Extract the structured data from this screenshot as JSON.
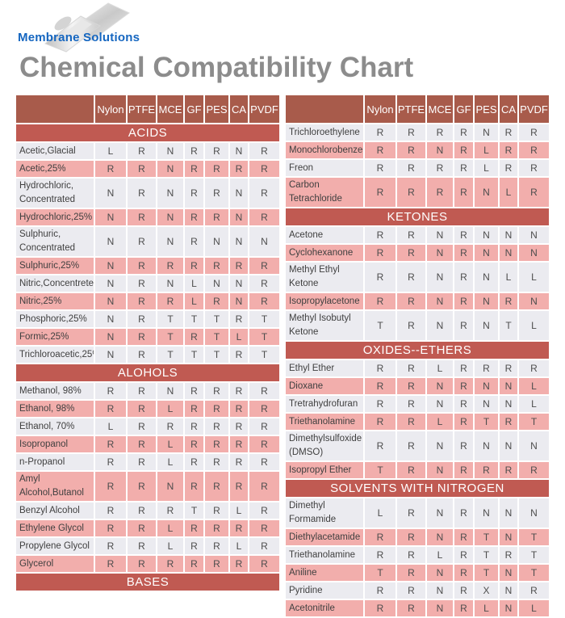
{
  "logo": {
    "brand": "Membrane Solutions"
  },
  "title": "Chemical Compatibility Chart",
  "columns": [
    "Nylon",
    "PTFE",
    "MCE",
    "GF",
    "PES",
    "CA",
    "PVDF"
  ],
  "colors": {
    "header_bg": "#a85b4b",
    "section_bg": "#c05a52",
    "pink_row": "#f2aeac",
    "light_row": "#ebebf0",
    "brand_blue": "#1566c0",
    "title_gray": "#8c8c8c"
  },
  "left_table": {
    "sections": [
      {
        "label": "ACIDS",
        "rows": [
          {
            "name": "Acetic,Glacial",
            "values": [
              "L",
              "R",
              "N",
              "R",
              "R",
              "N",
              "R"
            ]
          },
          {
            "name": "Acetic,25%",
            "values": [
              "R",
              "R",
              "N",
              "R",
              "R",
              "R",
              "R"
            ]
          },
          {
            "name": "Hydrochloric,\nConcentrated",
            "values": [
              "N",
              "R",
              "N",
              "R",
              "R",
              "N",
              "R"
            ]
          },
          {
            "name": "Hydrochloric,25%",
            "values": [
              "N",
              "R",
              "N",
              "R",
              "R",
              "N",
              "R"
            ]
          },
          {
            "name": "Sulphuric,\nConcentrated",
            "values": [
              "N",
              "R",
              "N",
              "R",
              "N",
              "N",
              "N"
            ]
          },
          {
            "name": "Sulphuric,25%",
            "values": [
              "N",
              "R",
              "R",
              "R",
              "R",
              "R",
              "R"
            ]
          },
          {
            "name": "Nitric,Concentreted",
            "values": [
              "N",
              "R",
              "N",
              "L",
              "N",
              "N",
              "R"
            ]
          },
          {
            "name": "Nitric,25%",
            "values": [
              "N",
              "R",
              "R",
              "L",
              "R",
              "N",
              "R"
            ]
          },
          {
            "name": "Phosphoric,25%",
            "values": [
              "N",
              "R",
              "T",
              "T",
              "T",
              "R",
              "T"
            ]
          },
          {
            "name": "Formic,25%",
            "values": [
              "N",
              "R",
              "T",
              "R",
              "T",
              "L",
              "T"
            ]
          },
          {
            "name": "Trichloroacetic,25%",
            "values": [
              "N",
              "R",
              "T",
              "T",
              "T",
              "R",
              "T"
            ]
          }
        ]
      },
      {
        "label": "ALOHOLS",
        "rows": [
          {
            "name": "Methanol, 98%",
            "values": [
              "R",
              "R",
              "N",
              "R",
              "R",
              "R",
              "R"
            ]
          },
          {
            "name": "Ethanol, 98%",
            "values": [
              "R",
              "R",
              "L",
              "R",
              "R",
              "R",
              "R"
            ]
          },
          {
            "name": "Ethanol, 70%",
            "values": [
              "L",
              "R",
              "R",
              "R",
              "R",
              "R",
              "R"
            ]
          },
          {
            "name": "Isopropanol",
            "values": [
              "R",
              "R",
              "L",
              "R",
              "R",
              "R",
              "R"
            ]
          },
          {
            "name": "n-Propanol",
            "values": [
              "R",
              "R",
              "L",
              "R",
              "R",
              "R",
              "R"
            ]
          },
          {
            "name": "Amyl Alcohol,Butanol",
            "values": [
              "R",
              "R",
              "N",
              "R",
              "R",
              "R",
              "R"
            ]
          },
          {
            "name": "Benzyl Alcohol",
            "values": [
              "R",
              "R",
              "R",
              "T",
              "R",
              "L",
              "R"
            ]
          },
          {
            "name": "Ethylene Glycol",
            "values": [
              "R",
              "R",
              "L",
              "R",
              "R",
              "R",
              "R"
            ]
          },
          {
            "name": "Propylene Glycol",
            "values": [
              "R",
              "R",
              "L",
              "R",
              "R",
              "L",
              "R"
            ]
          },
          {
            "name": "Glycerol",
            "values": [
              "R",
              "R",
              "R",
              "R",
              "R",
              "R",
              "R"
            ]
          }
        ]
      },
      {
        "label": "BASES",
        "rows": []
      }
    ]
  },
  "right_table": {
    "sections": [
      {
        "label": "",
        "rows": [
          {
            "name": "Trichloroethylene",
            "values": [
              "R",
              "R",
              "R",
              "R",
              "N",
              "R",
              "R"
            ]
          },
          {
            "name": "Monochlorobenzene",
            "values": [
              "R",
              "R",
              "N",
              "R",
              "L",
              "R",
              "R"
            ]
          },
          {
            "name": "Freon",
            "values": [
              "R",
              "R",
              "R",
              "R",
              "L",
              "R",
              "R"
            ]
          },
          {
            "name": "Carbon Tetrachloride",
            "values": [
              "R",
              "R",
              "R",
              "R",
              "N",
              "L",
              "R"
            ]
          }
        ]
      },
      {
        "label": "KETONES",
        "rows": [
          {
            "name": "Acetone",
            "values": [
              "R",
              "R",
              "N",
              "R",
              "N",
              "N",
              "N"
            ]
          },
          {
            "name": "Cyclohexanone",
            "values": [
              "R",
              "R",
              "N",
              "R",
              "N",
              "N",
              "N"
            ]
          },
          {
            "name": "Methyl Ethyl Ketone",
            "values": [
              "R",
              "R",
              "N",
              "R",
              "N",
              "L",
              "L"
            ]
          },
          {
            "name": "Isopropylacetone",
            "values": [
              "R",
              "R",
              "N",
              "R",
              "N",
              "R",
              "N"
            ]
          },
          {
            "name": "Methyl Isobutyl\nKetone",
            "values": [
              "T",
              "R",
              "N",
              "R",
              "N",
              "T",
              "L"
            ]
          }
        ]
      },
      {
        "label": "OXIDES--ETHERS",
        "rows": [
          {
            "name": "Ethyl Ether",
            "values": [
              "R",
              "R",
              "L",
              "R",
              "R",
              "R",
              "R"
            ]
          },
          {
            "name": "Dioxane",
            "values": [
              "R",
              "R",
              "N",
              "R",
              "N",
              "N",
              "L"
            ]
          },
          {
            "name": "Tretrahydrofuran",
            "values": [
              "R",
              "R",
              "N",
              "R",
              "N",
              "N",
              "L"
            ]
          },
          {
            "name": "Triethanolamine",
            "values": [
              "R",
              "R",
              "L",
              "R",
              "T",
              "R",
              "T"
            ]
          },
          {
            "name": "Dimethylsulfoxide\n(DMSO)",
            "values": [
              "R",
              "R",
              "N",
              "R",
              "N",
              "N",
              "N"
            ]
          },
          {
            "name": "Isopropyl Ether",
            "values": [
              "T",
              "R",
              "N",
              "R",
              "R",
              "R",
              "R"
            ]
          }
        ]
      },
      {
        "label": "SOLVENTS WITH NITROGEN",
        "rows": [
          {
            "name": "Dimethyl Formamide",
            "values": [
              "L",
              "R",
              "N",
              "R",
              "N",
              "N",
              "N"
            ]
          },
          {
            "name": "Diethylacetamide",
            "values": [
              "R",
              "R",
              "N",
              "R",
              "T",
              "N",
              "T"
            ]
          },
          {
            "name": "Triethanolamine",
            "values": [
              "R",
              "R",
              "L",
              "R",
              "T",
              "R",
              "T"
            ]
          },
          {
            "name": "Aniline",
            "values": [
              "T",
              "R",
              "N",
              "R",
              "T",
              "N",
              "T"
            ]
          },
          {
            "name": "Pyridine",
            "values": [
              "R",
              "R",
              "N",
              "R",
              "X",
              "N",
              "R"
            ]
          },
          {
            "name": "Acetonitrile",
            "values": [
              "R",
              "R",
              "N",
              "R",
              "L",
              "N",
              "L"
            ]
          }
        ]
      }
    ]
  }
}
